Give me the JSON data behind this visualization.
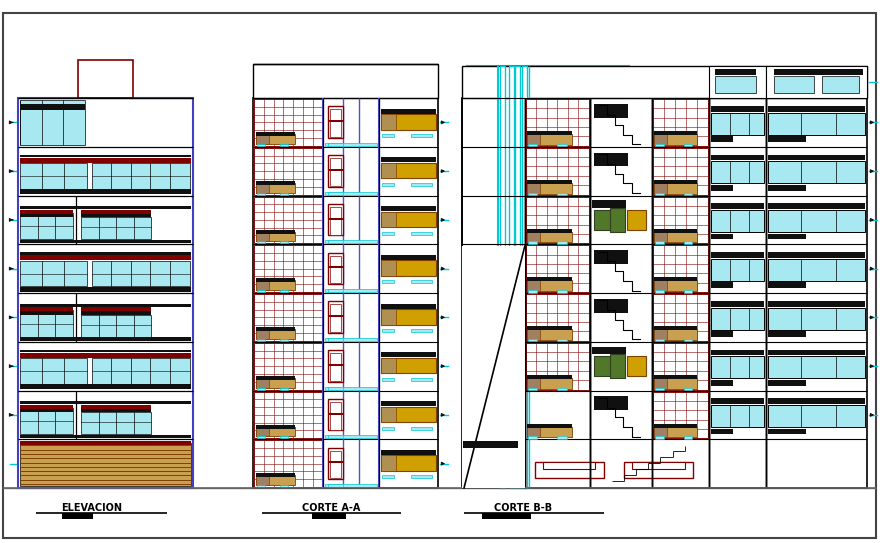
{
  "bg_color": "#ffffff",
  "labels": [
    "ELEVACION",
    "CORTE A-A",
    "CORTE B-B"
  ],
  "figsize": [
    8.8,
    5.43
  ],
  "dpi": 100,
  "colors": {
    "cyan_light": "#a8e8f0",
    "cyan": "#00c8d4",
    "dark_red": "#800000",
    "red": "#c00000",
    "blue": "#4040c0",
    "blue2": "#5050d0",
    "black": "#000000",
    "white": "#ffffff",
    "tan": "#c8a050",
    "brown_line": "#804000",
    "yellow": "#d0a000",
    "olive": "#507828",
    "dark": "#101010",
    "gray_blue": "#7080b0"
  }
}
